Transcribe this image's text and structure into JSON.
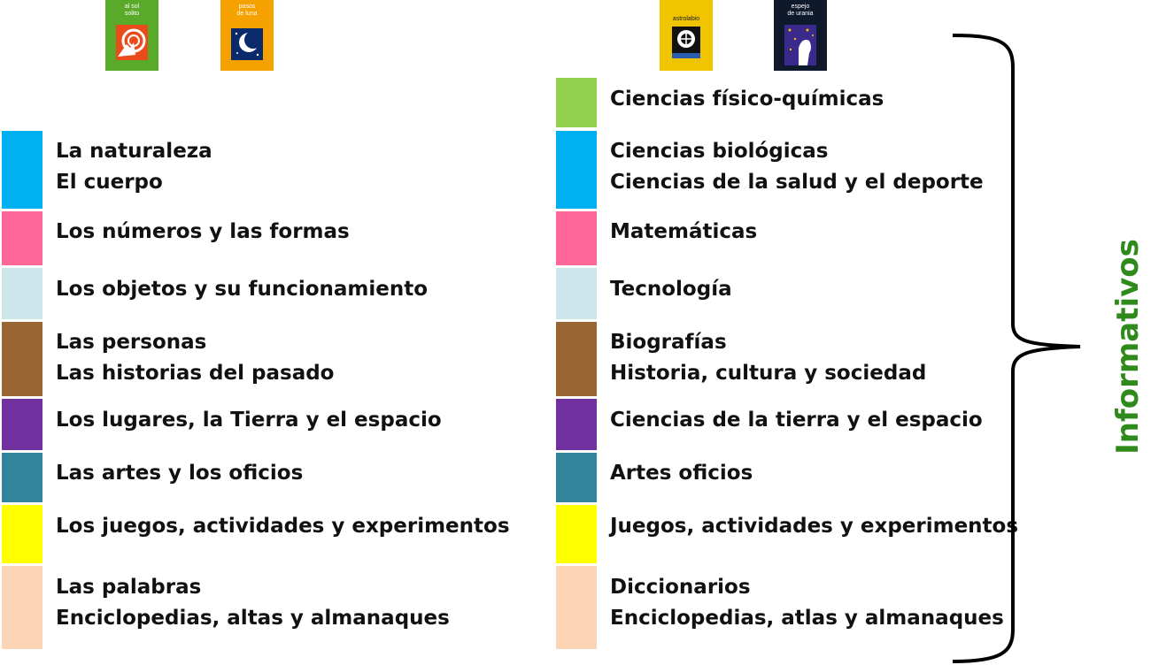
{
  "logos": [
    {
      "text": "al sol\nsolito",
      "color": "#5aaa2a",
      "icon": "sun-hand-icon"
    },
    {
      "text": "pasos\nde luna",
      "color": "#f5a100",
      "icon": "moon-icon"
    },
    {
      "text": "astrolabio",
      "color": "#f1c400",
      "icon": "astrolabe-icon"
    },
    {
      "text": "espejo\nde urania",
      "color": "#0e1a2c",
      "icon": "starry-mirror-icon"
    }
  ],
  "left_categories": [
    {
      "color": "#00b0f0",
      "lines": [
        "La naturaleza",
        "El cuerpo"
      ]
    },
    {
      "color": "#ff6699",
      "lines": [
        "Los números y las formas"
      ]
    },
    {
      "color": "#cde6ec",
      "lines": [
        "Los objetos y su funcionamiento"
      ]
    },
    {
      "color": "#996633",
      "lines": [
        "Las personas",
        "Las historias del pasado"
      ]
    },
    {
      "color": "#7030a0",
      "lines": [
        "Los lugares, la Tierra y el espacio"
      ]
    },
    {
      "color": "#31849b",
      "lines": [
        "Las artes y los oficios"
      ]
    },
    {
      "color": "#ffff00",
      "lines": [
        "Los juegos, actividades y experimentos"
      ]
    },
    {
      "color": "#fbd5b5",
      "lines": [
        "Las palabras",
        "Enciclopedias, altas y almanaques"
      ]
    }
  ],
  "right_categories": [
    {
      "color": "#92d050",
      "lines": [
        "Ciencias físico-químicas"
      ]
    },
    {
      "color": "#00b0f0",
      "lines": [
        "Ciencias biológicas",
        "Ciencias de la salud y el deporte"
      ]
    },
    {
      "color": "#ff6699",
      "lines": [
        "Matemáticas"
      ]
    },
    {
      "color": "#cde6ec",
      "lines": [
        "Tecnología"
      ]
    },
    {
      "color": "#996633",
      "lines": [
        "Biografías",
        "Historia, cultura y sociedad"
      ]
    },
    {
      "color": "#7030a0",
      "lines": [
        "Ciencias de la tierra y el espacio"
      ]
    },
    {
      "color": "#31849b",
      "lines": [
        "Artes  oficios"
      ]
    },
    {
      "color": "#ffff00",
      "lines": [
        "Juegos, actividades y experimentos"
      ]
    },
    {
      "color": "#fbd5b5",
      "lines": [
        "Diccionarios",
        "Enciclopedias, atlas y almanaques"
      ]
    }
  ],
  "group_label": "Informativos",
  "group_label_color": "#2f8a1c"
}
